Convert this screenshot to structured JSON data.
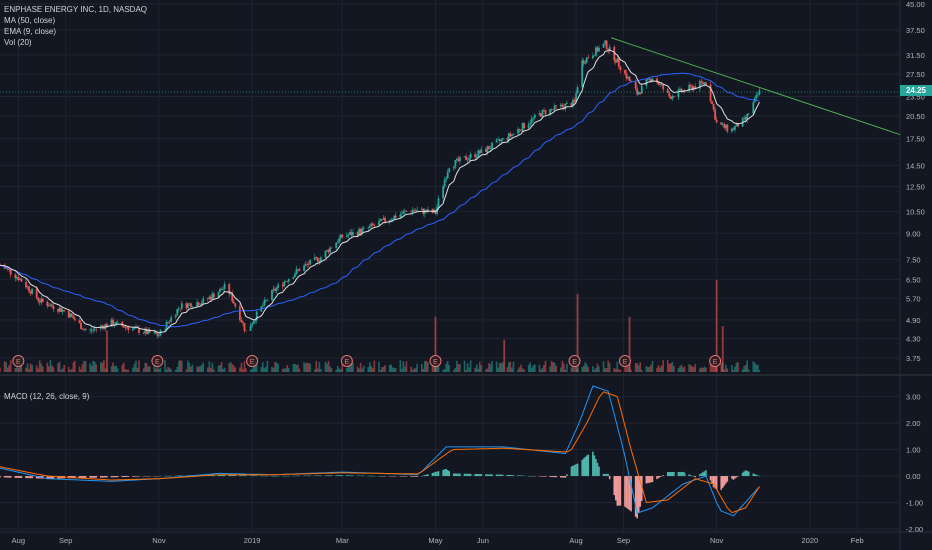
{
  "header": {
    "symbol_line": "ENPHASE ENERGY INC, 1D, NASDAQ",
    "ma_label": "MA (50, close)",
    "ema_label": "EMA (9, close)",
    "vol_label": "Vol (20)",
    "macd_label": "MACD (12, 26, close, 9)"
  },
  "last_price": "24.25",
  "colors": {
    "background": "#131722",
    "grid": "#1f2430",
    "up": "#26a69a",
    "down": "#ef5350",
    "ma50": "#2962ff",
    "ema9": "#e0e0e0",
    "trendline": "#4caf50",
    "macd": "#2196f3",
    "signal": "#ff6d00",
    "hist_up": "#4db6ac",
    "hist_down": "#ef9a9a",
    "earnings_marker": "#e57373"
  },
  "chart_data": [
    {
      "type": "candlestick",
      "title": "ENPHASE ENERGY INC, 1D, NASDAQ",
      "x_ticks": [
        "Aug",
        "Sep",
        "Nov",
        "2019",
        "Mar",
        "May",
        "Jun",
        "Aug",
        "Sep",
        "Nov",
        "2020",
        "Feb"
      ],
      "y_ticks": [
        "45.00",
        "37.50",
        "31.50",
        "27.50",
        "23.50",
        "20.50",
        "17.50",
        "14.50",
        "12.50",
        "10.50",
        "9.00",
        "7.50",
        "6.50",
        "5.70",
        "4.90",
        "4.30",
        "3.75"
      ],
      "y_scale": "log",
      "ylim": [
        3.4,
        45
      ],
      "price_path": [
        [
          "2018-07-20",
          7.2
        ],
        [
          "2018-08-01",
          6.6
        ],
        [
          "2018-08-15",
          5.6
        ],
        [
          "2018-09-01",
          5.2
        ],
        [
          "2018-09-15",
          4.5
        ],
        [
          "2018-10-01",
          4.8
        ],
        [
          "2018-10-15",
          4.6
        ],
        [
          "2018-11-01",
          4.4
        ],
        [
          "2018-11-15",
          5.4
        ],
        [
          "2018-12-01",
          5.6
        ],
        [
          "2018-12-15",
          6.2
        ],
        [
          "2018-12-28",
          4.5
        ],
        [
          "2019-01-15",
          6.0
        ],
        [
          "2019-02-01",
          7.0
        ],
        [
          "2019-02-15",
          7.6
        ],
        [
          "2019-03-01",
          8.8
        ],
        [
          "2019-03-15",
          9.2
        ],
        [
          "2019-04-01",
          10.0
        ],
        [
          "2019-04-15",
          10.6
        ],
        [
          "2019-05-01",
          10.4
        ],
        [
          "2019-05-10",
          14.5
        ],
        [
          "2019-06-01",
          16.0
        ],
        [
          "2019-06-20",
          18.0
        ],
        [
          "2019-07-10",
          21.0
        ],
        [
          "2019-07-31",
          22.5
        ],
        [
          "2019-08-05",
          30.0
        ],
        [
          "2019-08-20",
          34.0
        ],
        [
          "2019-09-01",
          28.0
        ],
        [
          "2019-09-10",
          24.0
        ],
        [
          "2019-09-20",
          27.0
        ],
        [
          "2019-10-01",
          23.5
        ],
        [
          "2019-10-15",
          25.0
        ],
        [
          "2019-10-25",
          26.0
        ],
        [
          "2019-11-01",
          19.5
        ],
        [
          "2019-11-10",
          18.5
        ],
        [
          "2019-11-20",
          20.0
        ],
        [
          "2019-11-29",
          24.25
        ]
      ],
      "trendline": [
        [
          "2019-08-24",
          35.5
        ],
        [
          "2020-02-29",
          18.0
        ]
      ],
      "volume_spikes": [
        [
          "2018-09-28",
          0.45
        ],
        [
          "2019-05-01",
          0.6
        ],
        [
          "2019-06-15",
          0.35
        ],
        [
          "2019-08-02",
          0.85
        ],
        [
          "2019-09-05",
          0.6
        ],
        [
          "2019-11-01",
          1.0
        ],
        [
          "2019-11-05",
          0.5
        ]
      ],
      "earnings_markers": [
        [
          "2018-08-01",
          "E"
        ],
        [
          "2018-10-31",
          "E"
        ],
        [
          "2019-01-01",
          "E"
        ],
        [
          "2019-03-04",
          "E"
        ],
        [
          "2019-05-01",
          "E"
        ],
        [
          "2019-07-31",
          "E"
        ],
        [
          "2019-09-02",
          "E"
        ],
        [
          "2019-10-31",
          "E"
        ]
      ]
    },
    {
      "type": "line",
      "title": "MACD (12, 26, close, 9)",
      "y_ticks": [
        "3.00",
        "2.00",
        "1.00",
        "0.00",
        "-1.00",
        "-2.00"
      ],
      "ylim": [
        -2.15,
        3.55
      ],
      "macd_path": [
        [
          "2018-07-20",
          0.3
        ],
        [
          "2018-08-20",
          -0.1
        ],
        [
          "2018-10-01",
          -0.2
        ],
        [
          "2018-11-01",
          -0.1
        ],
        [
          "2018-12-10",
          0.1
        ],
        [
          "2019-01-15",
          0.05
        ],
        [
          "2019-03-01",
          0.15
        ],
        [
          "2019-04-20",
          0.05
        ],
        [
          "2019-05-08",
          1.1
        ],
        [
          "2019-06-15",
          1.1
        ],
        [
          "2019-07-25",
          0.85
        ],
        [
          "2019-08-03",
          2.0
        ],
        [
          "2019-08-12",
          3.4
        ],
        [
          "2019-08-22",
          3.2
        ],
        [
          "2019-09-01",
          1.0
        ],
        [
          "2019-09-10",
          -1.4
        ],
        [
          "2019-09-20",
          -1.2
        ],
        [
          "2019-10-10",
          -0.3
        ],
        [
          "2019-10-25",
          0.0
        ],
        [
          "2019-11-03",
          -1.3
        ],
        [
          "2019-11-12",
          -1.5
        ],
        [
          "2019-11-29",
          -0.4
        ]
      ],
      "signal_path": [
        [
          "2018-07-20",
          0.35
        ],
        [
          "2018-08-20",
          0.0
        ],
        [
          "2018-10-01",
          -0.15
        ],
        [
          "2018-11-01",
          -0.1
        ],
        [
          "2018-12-10",
          0.05
        ],
        [
          "2019-01-15",
          0.05
        ],
        [
          "2019-03-01",
          0.12
        ],
        [
          "2019-04-20",
          0.08
        ],
        [
          "2019-05-12",
          1.0
        ],
        [
          "2019-06-15",
          1.05
        ],
        [
          "2019-07-28",
          0.9
        ],
        [
          "2019-08-08",
          2.0
        ],
        [
          "2019-08-18",
          3.2
        ],
        [
          "2019-08-28",
          3.0
        ],
        [
          "2019-09-06",
          1.0
        ],
        [
          "2019-09-16",
          -1.0
        ],
        [
          "2019-09-30",
          -0.9
        ],
        [
          "2019-10-18",
          -0.1
        ],
        [
          "2019-10-30",
          -0.3
        ],
        [
          "2019-11-10",
          -1.4
        ],
        [
          "2019-11-20",
          -1.2
        ],
        [
          "2019-11-29",
          -0.4
        ]
      ]
    }
  ]
}
